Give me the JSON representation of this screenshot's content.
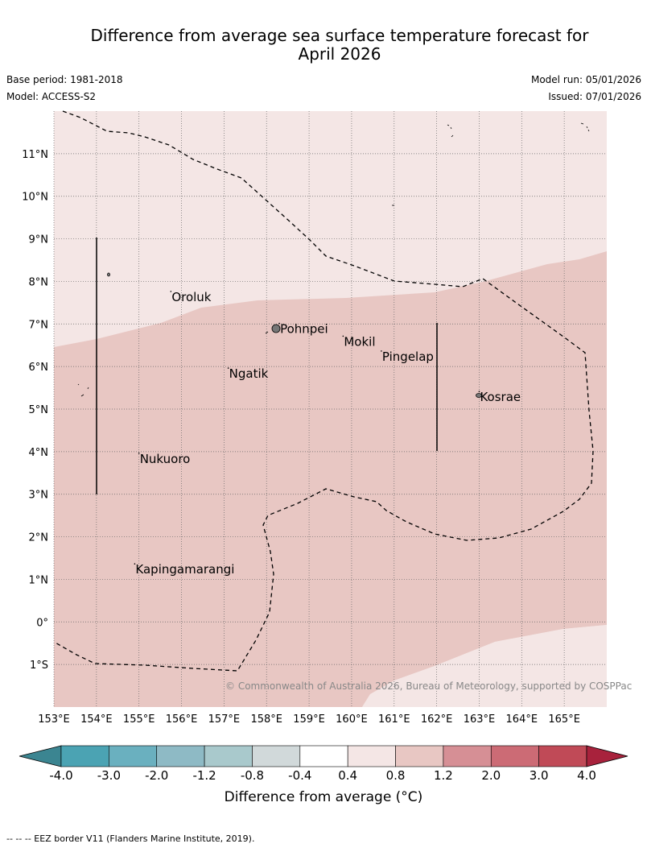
{
  "title_line1": "Difference from average sea surface temperature forecast for",
  "title_line2": "April 2026",
  "base_period": "Base period: 1981-2018",
  "model": "Model: ACCESS-S2",
  "model_run": "Model run: 05/01/2026",
  "issued": "Issued: 07/01/2026",
  "attribution": "© Commonwealth of Australia 2026, Bureau of Meteorology, supported by COSPPac",
  "footnote": "--  --  -- EEZ border V11 (Flanders Marine Institute, 2019).",
  "map": {
    "lon_range": [
      153,
      166
    ],
    "lat_range": [
      -2,
      12
    ],
    "lon_ticks": [
      {
        "value": 153,
        "label": "153°E"
      },
      {
        "value": 154,
        "label": "154°E"
      },
      {
        "value": 155,
        "label": "155°E"
      },
      {
        "value": 156,
        "label": "156°E"
      },
      {
        "value": 157,
        "label": "157°E"
      },
      {
        "value": 158,
        "label": "158°E"
      },
      {
        "value": 159,
        "label": "159°E"
      },
      {
        "value": 160,
        "label": "160°E"
      },
      {
        "value": 161,
        "label": "161°E"
      },
      {
        "value": 162,
        "label": "162°E"
      },
      {
        "value": 163,
        "label": "163°E"
      },
      {
        "value": 164,
        "label": "164°E"
      },
      {
        "value": 165,
        "label": "165°E"
      }
    ],
    "lat_ticks": [
      {
        "value": 11,
        "label": "11°N"
      },
      {
        "value": 10,
        "label": "10°N"
      },
      {
        "value": 9,
        "label": "9°N"
      },
      {
        "value": 8,
        "label": "8°N"
      },
      {
        "value": 7,
        "label": "7°N"
      },
      {
        "value": 6,
        "label": "6°N"
      },
      {
        "value": 5,
        "label": "5°N"
      },
      {
        "value": 4,
        "label": "4°N"
      },
      {
        "value": 3,
        "label": "3°N"
      },
      {
        "value": 2,
        "label": "2°N"
      },
      {
        "value": 1,
        "label": "1°N"
      },
      {
        "value": 0,
        "label": "0°"
      },
      {
        "value": -1,
        "label": "1°S"
      }
    ],
    "places": [
      {
        "name": "Oroluk",
        "lon": 155.75,
        "lat": 7.65
      },
      {
        "name": "Pohnpei",
        "lon": 158.3,
        "lat": 6.9
      },
      {
        "name": "Mokil",
        "lon": 159.8,
        "lat": 6.6
      },
      {
        "name": "Pingelap",
        "lon": 160.7,
        "lat": 6.25
      },
      {
        "name": "Ngatik",
        "lon": 157.1,
        "lat": 5.85
      },
      {
        "name": "Kosrae",
        "lon": 163.0,
        "lat": 5.3
      },
      {
        "name": "Nukuoro",
        "lon": 155.0,
        "lat": 3.85
      },
      {
        "name": "Kapingamarangi",
        "lon": 154.9,
        "lat": 1.25
      }
    ],
    "anomaly_zones": [
      {
        "range": "0.4 to 0.8",
        "color": "#f4e6e5"
      },
      {
        "range": "0.8 to 1.2",
        "color": "#e8c7c3"
      }
    ]
  },
  "colorbar": {
    "title": "Difference from average (°C)",
    "tick_labels": [
      "-4.0",
      "-3.0",
      "-2.0",
      "-1.2",
      "-0.8",
      "-0.4",
      "0.4",
      "0.8",
      "1.2",
      "2.0",
      "3.0",
      "4.0"
    ],
    "colors": [
      "#3b8591",
      "#4ba3b3",
      "#6ab0bf",
      "#8ebac5",
      "#a9c9cc",
      "#d1d9da",
      "#ffffff",
      "#f4e6e5",
      "#e8c7c3",
      "#d68f95",
      "#cc6b75",
      "#c04a57",
      "#a8223c"
    ]
  }
}
